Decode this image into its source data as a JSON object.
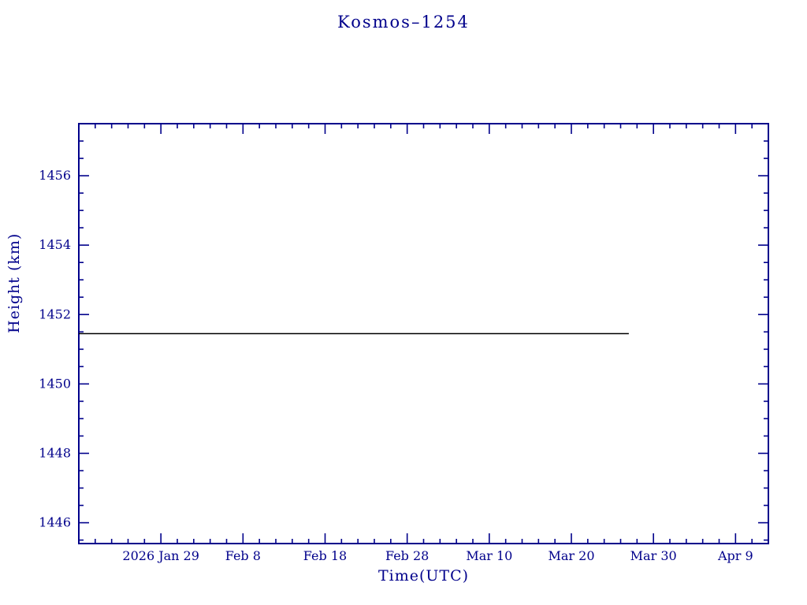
{
  "chart_data": {
    "type": "line",
    "title": "Kosmos–1254",
    "xlabel": "Time(UTC)",
    "ylabel": "Height (km)",
    "axis_color": "#00008b",
    "background": "#ffffff",
    "grid": false,
    "legend": "none",
    "x_epoch_label": "2026 Jan 29",
    "xlim_days": [
      -10,
      74
    ],
    "x_minor_step_days": 2,
    "x_ticks": [
      {
        "day": 0,
        "label": "2026 Jan 29"
      },
      {
        "day": 10,
        "label": "Feb 8"
      },
      {
        "day": 20,
        "label": "Feb 18"
      },
      {
        "day": 30,
        "label": "Feb 28"
      },
      {
        "day": 40,
        "label": "Mar 10"
      },
      {
        "day": 50,
        "label": "Mar 20"
      },
      {
        "day": 60,
        "label": "Mar 30"
      },
      {
        "day": 70,
        "label": "Apr 9"
      }
    ],
    "ylim": [
      1445.4,
      1457.5
    ],
    "y_major_ticks": [
      1446,
      1448,
      1450,
      1452,
      1454,
      1456
    ],
    "y_minor_step": 0.5,
    "series": [
      {
        "name": "height",
        "color": "#000000",
        "x_days": [
          -10,
          57
        ],
        "y_km": [
          1451.45,
          1451.45
        ]
      }
    ]
  }
}
